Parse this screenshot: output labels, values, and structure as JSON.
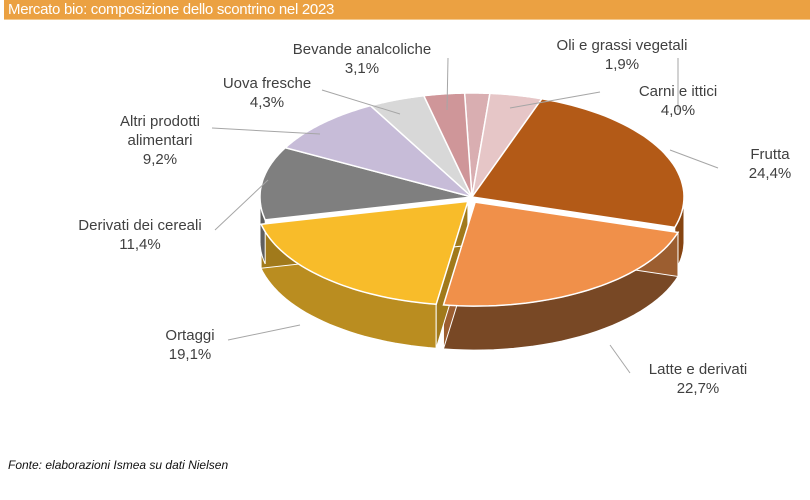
{
  "header": {
    "title": "Mercato bio: composizione dello scontrino nel 2023"
  },
  "chart_data": {
    "type": "pie",
    "title": "Mercato bio: composizione dello scontrino nel 2023",
    "slices": [
      {
        "name": "Oli e grassi vegetali",
        "value": 1.9,
        "label": "1,9%",
        "color": "#d9aeb1"
      },
      {
        "name": "Carni e ittici",
        "value": 4.0,
        "label": "4,0%",
        "color": "#e6c6c7"
      },
      {
        "name": "Frutta",
        "value": 24.4,
        "label": "24,4%",
        "color": "#b35a17"
      },
      {
        "name": "Latte e derivati",
        "value": 22.7,
        "label": "22,7%",
        "color": "#f0904a"
      },
      {
        "name": "Ortaggi",
        "value": 19.1,
        "label": "19,1%",
        "color": "#f8bc2a"
      },
      {
        "name": "Derivati dei cereali",
        "value": 11.4,
        "label": "11,4%",
        "color": "#7f7f7f"
      },
      {
        "name": "Altri prodotti alimentari",
        "value": 9.2,
        "label": "9,2%",
        "color": "#c7bcd8"
      },
      {
        "name": "Uova fresche",
        "value": 4.3,
        "label": "4,3%",
        "color": "#d8d8d8"
      },
      {
        "name": "Bevande analcoliche",
        "value": 3.1,
        "label": "3,1%",
        "color": "#cf9699"
      }
    ]
  },
  "footer": {
    "source": "Fonte: elaborazioni Ismea su dati Nielsen"
  }
}
